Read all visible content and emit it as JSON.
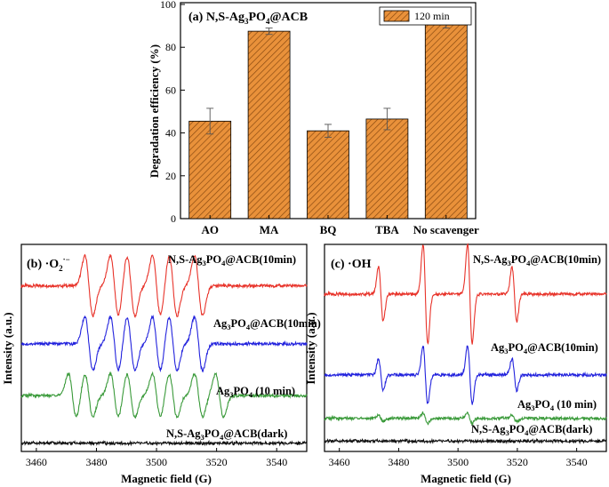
{
  "chart_data": [
    {
      "type": "bar",
      "panel_label": "(a) N,S-Ag3PO4@ACB",
      "title": "",
      "xlabel": "",
      "ylabel": "Degradation efficiency (%)",
      "ylim": [
        0,
        100
      ],
      "yticks": [
        "0",
        "20",
        "40",
        "60",
        "80",
        "100"
      ],
      "categories": [
        "AO",
        "MA",
        "BQ",
        "TBA",
        "No scavenger"
      ],
      "series": [
        {
          "name": "120 min",
          "values": [
            45.5,
            87.5,
            41.0,
            46.5,
            90.5
          ],
          "errors": [
            6.0,
            1.5,
            3.0,
            5.0,
            1.5
          ]
        }
      ],
      "colors": {
        "bar": "#e9913a",
        "hatch": "#8a4a10"
      },
      "legend": "top-right"
    },
    {
      "type": "line",
      "panel_label": "(b) ·O2·−",
      "xlabel": "Magnetic field (G)",
      "ylabel": "Intensity (a.u.)",
      "xlim": [
        3455,
        3550
      ],
      "xticks": [
        "3460",
        "3480",
        "3500",
        "3520",
        "3540"
      ],
      "series": [
        {
          "name": "N,S-Ag3PO4@ACB(10min)",
          "color": "#e8332a",
          "baseline": 0.8,
          "amp": 0.145,
          "peaks": [
            3477.5,
            3486,
            3491.5,
            3500,
            3505.5,
            3514
          ]
        },
        {
          "name": "Ag3PO4@ACB(10min)",
          "color": "#2222dd",
          "baseline": 0.52,
          "amp": 0.13,
          "peaks": [
            3477.5,
            3486,
            3491.5,
            3500,
            3505.5,
            3514
          ]
        },
        {
          "name": "Ag3PO4 (10 min)",
          "color": "#3a9a3a",
          "baseline": 0.27,
          "amp": 0.105,
          "peaks": [
            3472,
            3477.5,
            3486,
            3491.5,
            3500,
            3505.5,
            3514,
            3521
          ]
        },
        {
          "name": "N,S-Ag3PO4@ACB(dark)",
          "color": "#111111",
          "baseline": 0.04,
          "amp": 0.0,
          "peaks": []
        }
      ]
    },
    {
      "type": "line",
      "panel_label": "(c) ·OH",
      "xlabel": "Magnetic field (G)",
      "ylabel": "Intensity (a.u.)",
      "xlim": [
        3455,
        3550
      ],
      "xticks": [
        "3460",
        "3480",
        "3500",
        "3520",
        "3540"
      ],
      "series": [
        {
          "name": "N,S-Ag3PO4@ACB(10min)",
          "color": "#e8332a",
          "baseline": 0.76,
          "amp": 0.24,
          "peaks": [
            3474,
            3489,
            3504,
            3519
          ],
          "weights": [
            0.55,
            1,
            1,
            0.55
          ]
        },
        {
          "name": "Ag3PO4@ACB(10min)",
          "color": "#2222dd",
          "baseline": 0.37,
          "amp": 0.14,
          "peaks": [
            3474,
            3489,
            3504,
            3519
          ],
          "weights": [
            0.55,
            1,
            1,
            0.55
          ]
        },
        {
          "name": "Ag3PO4 (10 min)",
          "color": "#3a9a3a",
          "baseline": 0.16,
          "amp": 0.025,
          "peaks": [
            3474,
            3489,
            3504,
            3519
          ],
          "weights": [
            0.6,
            1,
            1,
            0.6
          ]
        },
        {
          "name": "N,S-Ag3PO4@ACB(dark)",
          "color": "#111111",
          "baseline": 0.05,
          "amp": 0.0,
          "peaks": []
        }
      ]
    }
  ]
}
